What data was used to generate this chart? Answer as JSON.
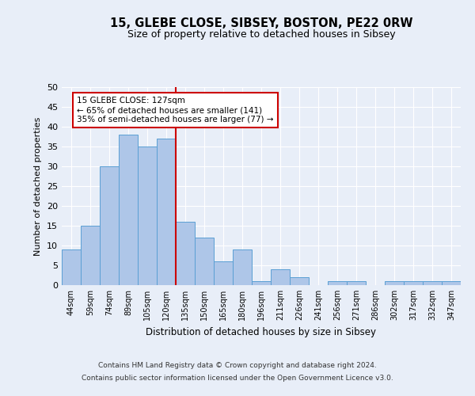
{
  "title1": "15, GLEBE CLOSE, SIBSEY, BOSTON, PE22 0RW",
  "title2": "Size of property relative to detached houses in Sibsey",
  "xlabel": "Distribution of detached houses by size in Sibsey",
  "ylabel": "Number of detached properties",
  "categories": [
    "44sqm",
    "59sqm",
    "74sqm",
    "89sqm",
    "105sqm",
    "120sqm",
    "135sqm",
    "150sqm",
    "165sqm",
    "180sqm",
    "196sqm",
    "211sqm",
    "226sqm",
    "241sqm",
    "256sqm",
    "271sqm",
    "286sqm",
    "302sqm",
    "317sqm",
    "332sqm",
    "347sqm"
  ],
  "values": [
    9,
    15,
    30,
    38,
    35,
    37,
    16,
    12,
    6,
    9,
    1,
    4,
    2,
    0,
    1,
    1,
    0,
    1,
    1,
    1,
    1
  ],
  "bar_color": "#aec6e8",
  "bar_edge_color": "#5a9fd4",
  "vline_x_index": 5.5,
  "vline_color": "#cc0000",
  "annotation_text": "15 GLEBE CLOSE: 127sqm\n← 65% of detached houses are smaller (141)\n35% of semi-detached houses are larger (77) →",
  "annotation_box_color": "#ffffff",
  "annotation_box_edge_color": "#cc0000",
  "ylim": [
    0,
    50
  ],
  "yticks": [
    0,
    5,
    10,
    15,
    20,
    25,
    30,
    35,
    40,
    45,
    50
  ],
  "footer1": "Contains HM Land Registry data © Crown copyright and database right 2024.",
  "footer2": "Contains public sector information licensed under the Open Government Licence v3.0.",
  "bg_color": "#e8eef8",
  "plot_bg_color": "#e8eef8",
  "title1_fontsize": 10.5,
  "title2_fontsize": 9
}
